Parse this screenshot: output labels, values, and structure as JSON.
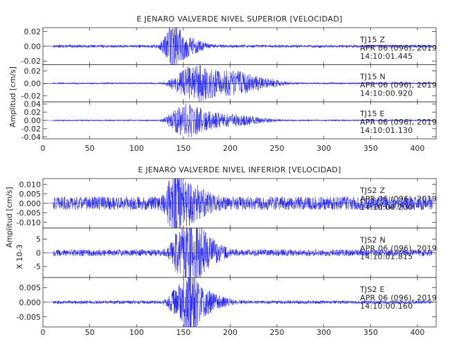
{
  "colors": {
    "trace": "#1a1aee",
    "axis": "#333333",
    "text": "#222222",
    "background": "#ffffff"
  },
  "chart_data": [
    {
      "type": "line",
      "title": "E JENARO VALVERDE NIVEL SUPERIOR [VELOCIDAD]",
      "ylabel": "Amplitud [cm/s]",
      "xlim": [
        0,
        420
      ],
      "xticks": [
        "0",
        "50",
        "100",
        "150",
        "200",
        "250",
        "300",
        "350",
        "400"
      ],
      "xtick_values": [
        0,
        50,
        100,
        150,
        200,
        250,
        300,
        350,
        400
      ],
      "panels": [
        {
          "station": "TJ15",
          "component": "Z",
          "ylim": [
            -0.025,
            0.025
          ],
          "yticks": [
            "0.02",
            "0.00",
            "-0.02"
          ],
          "ytick_values": [
            0.02,
            0.0,
            -0.02
          ],
          "info": {
            "station_line": "TJ15   Z",
            "date": "APR 06 (096), 2019",
            "time": "14:10:01.445"
          },
          "envelope": {
            "noise": 0.002,
            "bursts": [
              [
                138,
                0.022,
                6
              ],
              [
                147,
                0.012,
                10
              ],
              [
                160,
                0.005,
                12
              ]
            ]
          }
        },
        {
          "station": "TJ15",
          "component": "N",
          "ylim": [
            -0.03,
            0.03
          ],
          "yticks": [
            "0.02",
            "0.00",
            "-0.02"
          ],
          "ytick_values": [
            0.02,
            0.0,
            -0.02
          ],
          "info": {
            "station_line": "TJ15   N",
            "date": "APR 06 (096), 2019",
            "time": "14:10:00.920"
          },
          "envelope": {
            "noise": 0.0015,
            "bursts": [
              [
                140,
                0.008,
                5
              ],
              [
                152,
                0.016,
                6
              ],
              [
                164,
                0.022,
                8
              ],
              [
                180,
                0.018,
                10
              ],
              [
                198,
                0.008,
                8
              ],
              [
                210,
                0.014,
                12
              ],
              [
                235,
                0.007,
                14
              ]
            ]
          }
        },
        {
          "station": "TJ15",
          "component": "E",
          "ylim": [
            -0.045,
            0.045
          ],
          "yticks": [
            "0.04",
            "0.02",
            "0.00",
            "-0.02",
            "-0.04"
          ],
          "ytick_values": [
            0.04,
            0.02,
            0.0,
            -0.02,
            -0.04
          ],
          "info": {
            "station_line": "TJ15   E",
            "date": "APR 06 (096), 2019",
            "time": "14:10:01.130"
          },
          "envelope": {
            "noise": 0.002,
            "bursts": [
              [
                140,
                0.018,
                6
              ],
              [
                152,
                0.032,
                7
              ],
              [
                165,
                0.024,
                8
              ],
              [
                182,
                0.014,
                10
              ],
              [
                205,
                0.011,
                12
              ],
              [
                228,
                0.005,
                14
              ]
            ]
          }
        }
      ]
    },
    {
      "type": "line",
      "title": "E JENARO VALVERDE NIVEL INFERIOR [VELOCIDAD]",
      "ylabel": "Amplitud [cm/s]",
      "ylabel_scale": "X 10-3",
      "xlim": [
        0,
        420
      ],
      "xticks": [
        "0",
        "50",
        "100",
        "150",
        "200",
        "250",
        "300",
        "350",
        "400"
      ],
      "xtick_values": [
        0,
        50,
        100,
        150,
        200,
        250,
        300,
        350,
        400
      ],
      "panels": [
        {
          "station": "TJS2",
          "component": "Z",
          "ylim": [
            -0.013,
            0.013
          ],
          "yticks": [
            "0.010",
            "0.005",
            "0.000",
            "-0.005",
            "-0.010"
          ],
          "ytick_values": [
            0.01,
            0.005,
            0.0,
            -0.005,
            -0.01
          ],
          "info": {
            "station_line": "TJS2   Z",
            "date": "APR 06 (096), 2019",
            "time": "14:10:00.200"
          },
          "envelope": {
            "noise": 0.0035,
            "bursts": [
              [
                140,
                0.011,
                5
              ],
              [
                150,
                0.007,
                10
              ],
              [
                165,
                0.004,
                12
              ]
            ]
          }
        },
        {
          "station": "TJS2",
          "component": "N",
          "ylim": [
            -9,
            9
          ],
          "yticks": [
            "5",
            "0",
            "-5"
          ],
          "ytick_values": [
            5,
            0,
            -5
          ],
          "info": {
            "station_line": "TJS2   N",
            "date": "APR 06 (096), 2019",
            "time": "14:10:01.815"
          },
          "envelope": {
            "noise": 1.2,
            "bursts": [
              [
                142,
                4.5,
                5
              ],
              [
                155,
                8.5,
                7
              ],
              [
                166,
                6.5,
                8
              ],
              [
                180,
                3.0,
                10
              ]
            ]
          }
        },
        {
          "station": "TJS2",
          "component": "E",
          "ylim": [
            -0.0085,
            0.0085
          ],
          "yticks": [
            "0.005",
            "0.000",
            "-0.005"
          ],
          "ytick_values": [
            0.005,
            0.0,
            -0.005
          ],
          "info": {
            "station_line": "TJS2   E",
            "date": "APR 06 (096), 2019",
            "time": "14:10:00.160"
          },
          "envelope": {
            "noise": 0.0006,
            "bursts": [
              [
                140,
                0.003,
                5
              ],
              [
                152,
                0.0055,
                6
              ],
              [
                158,
                0.0078,
                6
              ],
              [
                170,
                0.003,
                10
              ],
              [
                185,
                0.0015,
                12
              ]
            ]
          }
        }
      ]
    }
  ]
}
